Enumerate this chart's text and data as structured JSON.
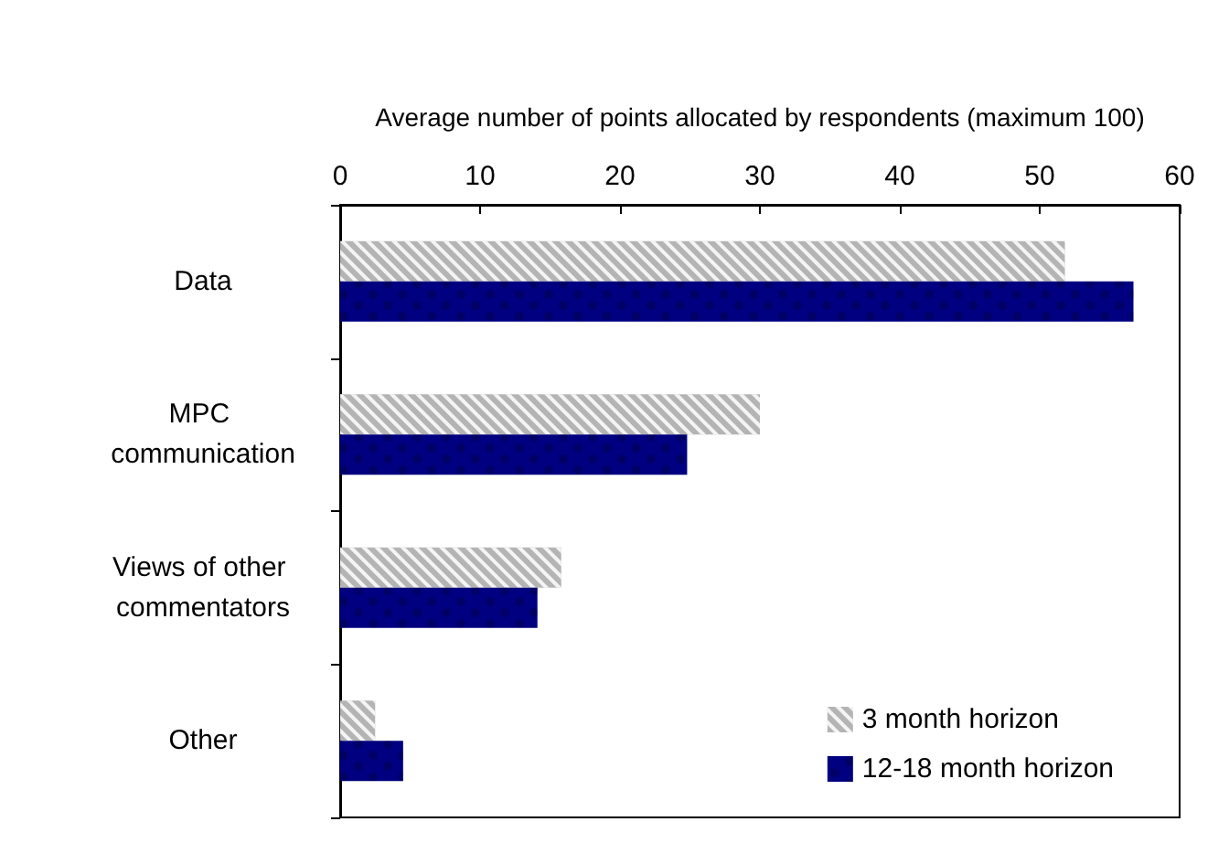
{
  "chart_data": {
    "type": "bar",
    "orientation": "horizontal",
    "xlabel": "Average number of points allocated by respondents (maximum 100)",
    "categories": [
      "Data",
      "MPC communication",
      "Views of other commentators",
      "Other"
    ],
    "series": [
      {
        "name": "3 month horizon",
        "color": "#b4b4b4",
        "values": [
          51.8,
          30.0,
          15.8,
          2.5
        ]
      },
      {
        "name": "12-18 month horizon",
        "color": "#000080",
        "values": [
          56.7,
          24.8,
          14.1,
          4.5
        ]
      }
    ],
    "xlim": [
      0,
      60
    ],
    "xticks": [
      0,
      10,
      20,
      30,
      40,
      50,
      60
    ],
    "grid": false,
    "legend": "bottom right"
  }
}
